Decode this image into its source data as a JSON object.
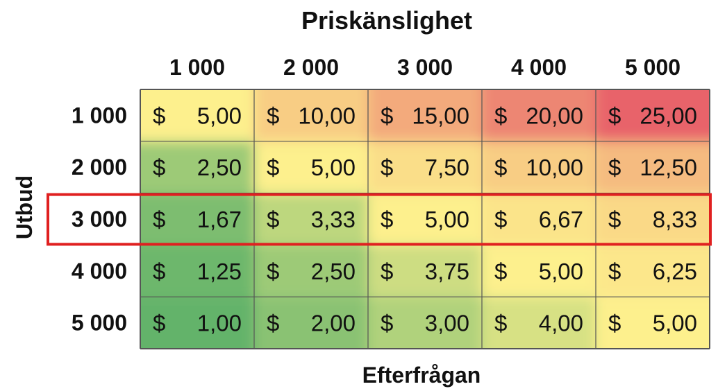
{
  "chart_data": {
    "type": "heatmap",
    "title": "Priskänslighet",
    "xlabel": "Efterfrågan",
    "ylabel": "Utbud",
    "columns": [
      "1 000",
      "2 000",
      "3 000",
      "4 000",
      "5 000"
    ],
    "rows": [
      "1 000",
      "2 000",
      "3 000",
      "4 000",
      "5 000"
    ],
    "currency_symbol": "$",
    "values": [
      [
        5.0,
        10.0,
        15.0,
        20.0,
        25.0
      ],
      [
        2.5,
        5.0,
        7.5,
        10.0,
        12.5
      ],
      [
        1.67,
        3.33,
        5.0,
        6.67,
        8.33
      ],
      [
        1.25,
        2.5,
        3.75,
        5.0,
        6.25
      ],
      [
        1.0,
        2.0,
        3.0,
        4.0,
        5.0
      ]
    ],
    "cell_labels": [
      [
        "5,00",
        "10,00",
        "15,00",
        "20,00",
        "25,00"
      ],
      [
        "2,50",
        "5,00",
        "7,50",
        "10,00",
        "12,50"
      ],
      [
        "1,67",
        "3,33",
        "5,00",
        "6,67",
        "8,33"
      ],
      [
        "1,25",
        "2,50",
        "3,75",
        "5,00",
        "6,25"
      ],
      [
        "1,00",
        "2,00",
        "3,00",
        "4,00",
        "5,00"
      ]
    ],
    "highlighted_row_index": 2,
    "colors": {
      "low": "#63b36a",
      "mid": "#fdf08d",
      "high": "#e8636a",
      "highlight": "#e02020",
      "grid": "#555555"
    }
  }
}
